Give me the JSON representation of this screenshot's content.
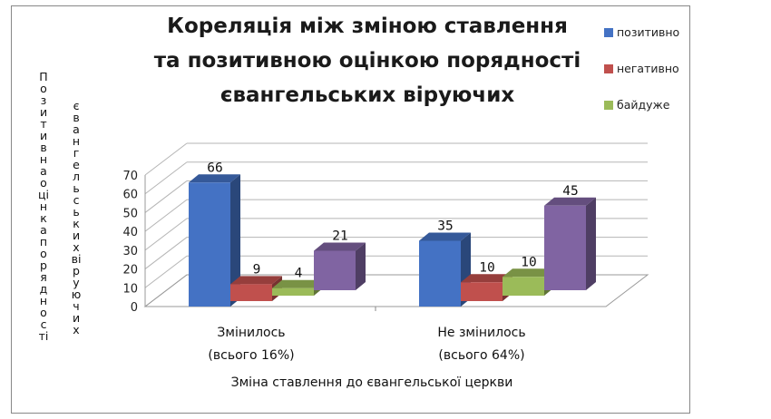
{
  "chart_data": {
    "type": "bar",
    "title_lines": [
      "Кореляція між зміною ставлення",
      "та позитивною оцінкою порядності",
      "євангельських віруючих"
    ],
    "xlabel": "Зміна ставлення до євангельської церкви",
    "ylabel_lines": [
      "Позитивна оцінка порядності",
      "євангельських віруючих"
    ],
    "categories": [
      [
        "Змінилось",
        "(всього 16%)"
      ],
      [
        "Не змінилось",
        "(всього 64%)"
      ]
    ],
    "series": [
      {
        "name": "позитивно",
        "color": "#4472C4",
        "values": [
          66,
          35
        ]
      },
      {
        "name": "негативно",
        "color": "#C0504D",
        "values": [
          9,
          10
        ]
      },
      {
        "name": "байдуже",
        "color": "#9BBB59",
        "values": [
          4,
          10
        ]
      },
      {
        "name": "",
        "color": "#8064A2",
        "values": [
          21,
          45
        ]
      }
    ],
    "ylim": [
      0,
      70
    ],
    "yticks": [
      0,
      10,
      20,
      30,
      40,
      50,
      60,
      70
    ],
    "legend_position": "right",
    "grid": true,
    "three_d": true
  }
}
